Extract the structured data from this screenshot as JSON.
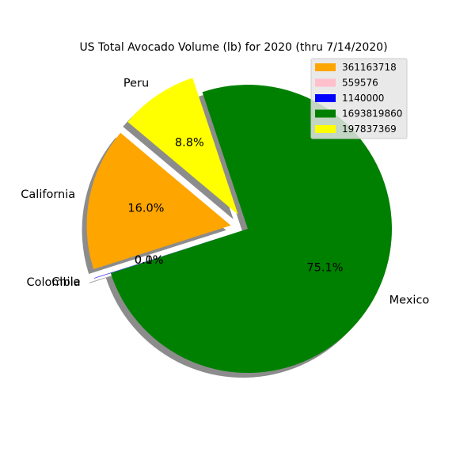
{
  "chart_data": {
    "type": "pie",
    "title": "US Total Avocado Volume (lb) for 2020 (thru 7/14/2020)",
    "slices": [
      {
        "label": "California",
        "value": 361163718,
        "percent_label": "16.0%",
        "color": "#ffa500",
        "exploded": true
      },
      {
        "label": "Chile",
        "value": 559576,
        "percent_label": "0.0%",
        "color": "#ffc0cb",
        "exploded": true
      },
      {
        "label": "Colombia",
        "value": 1140000,
        "percent_label": "0.1%",
        "color": "#0000ff",
        "exploded": true
      },
      {
        "label": "Mexico",
        "value": 1693819860,
        "percent_label": "75.1%",
        "color": "#008000",
        "exploded": false
      },
      {
        "label": "Peru",
        "value": 197837369,
        "percent_label": "8.8%",
        "color": "#ffff00",
        "exploded": true
      }
    ],
    "legend": {
      "placement": "top-right",
      "entries": [
        "361163718",
        "559576",
        "1140000",
        "1693819860",
        "197837369"
      ]
    },
    "shadow": true,
    "start_angle_deg": 140
  }
}
